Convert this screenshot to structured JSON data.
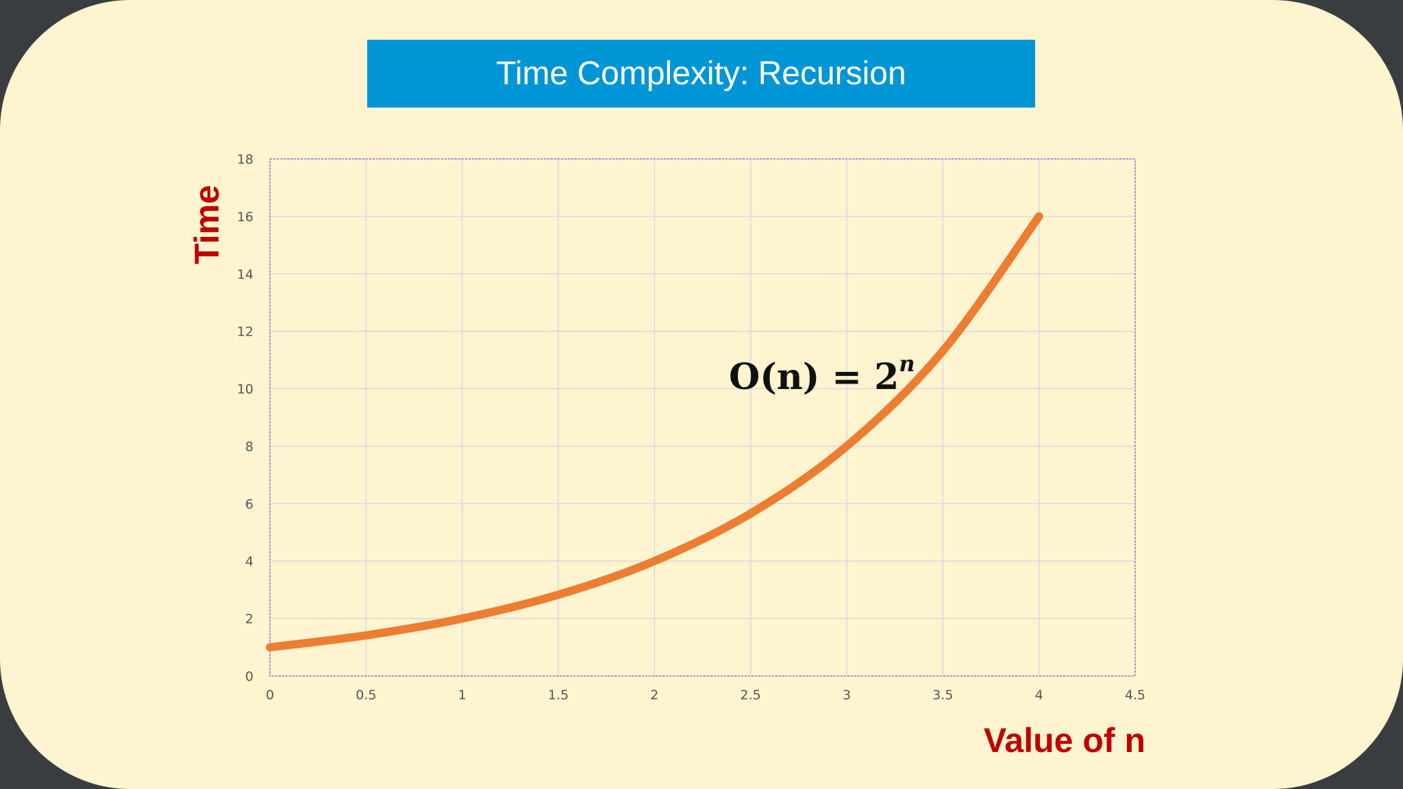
{
  "slide": {
    "title": "Time Complexity: Recursion",
    "title_bg": "#0096d6",
    "background": "#fef4cf",
    "outer_background": "#3a3d40"
  },
  "annotation": {
    "base": "O(n) = 2",
    "superscript": "n"
  },
  "chart_data": {
    "type": "line",
    "title": "",
    "xlabel": "Value of n",
    "ylabel": "Time",
    "xlim": [
      0,
      4.5
    ],
    "ylim": [
      0,
      18
    ],
    "xticks": [
      0,
      0.5,
      1,
      1.5,
      2,
      2.5,
      3,
      3.5,
      4,
      4.5
    ],
    "yticks": [
      0,
      2,
      4,
      6,
      8,
      10,
      12,
      14,
      16,
      18
    ],
    "grid": true,
    "legend": "none",
    "series": [
      {
        "color": "#ed7d31",
        "x": [
          0,
          0.5,
          1,
          1.5,
          2,
          2.5,
          3,
          3.5,
          4
        ],
        "y": [
          1,
          1.414,
          2,
          2.828,
          4,
          5.657,
          8,
          11.314,
          16
        ]
      }
    ],
    "colors": {
      "label": "#c00000",
      "grid": "#d8d8e0",
      "plot_border": "#b070c0",
      "tick_text": "#555555"
    }
  }
}
